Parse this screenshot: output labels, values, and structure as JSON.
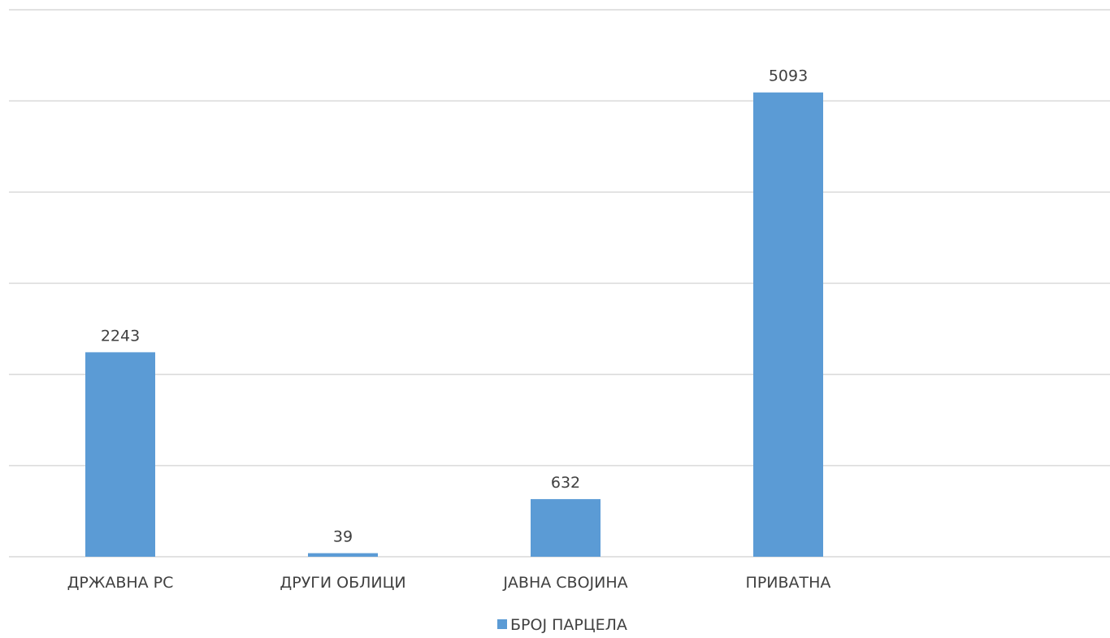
{
  "chart_data": {
    "type": "bar",
    "categories": [
      "ДРЖАВНА РС",
      "ДРУГИ ОБЛИЦИ",
      "ЈАВНА СВОЈИНА",
      "ПРИВАТНА"
    ],
    "series": [
      {
        "name": "БРОЈ ПАРЦЕЛА",
        "values": [
          2243,
          39,
          632,
          5093
        ],
        "color": "#5b9bd5"
      }
    ],
    "data_labels": [
      "2243",
      "39",
      "632",
      "5093"
    ],
    "ylim": [
      0,
      6000
    ],
    "y_grid_step": 1000,
    "grid": true,
    "y_tick_labels_shown": false,
    "legend_position": "bottom"
  }
}
